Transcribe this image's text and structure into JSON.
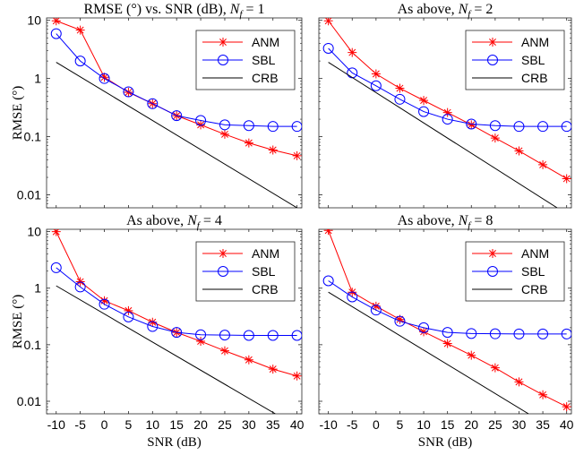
{
  "chart_data": [
    {
      "type": "line",
      "title": "RMSE (°) vs. SNR (dB), ",
      "title_math": "N",
      "title_sub": "f",
      "title_tail": " = 1",
      "xlabel": "",
      "ylabel": "RMSE (°)",
      "x": [
        -10,
        -5,
        0,
        5,
        10,
        15,
        20,
        25,
        30,
        35,
        40
      ],
      "xlim": [
        -12,
        41
      ],
      "ylim": [
        0.006,
        11
      ],
      "yscale": "log",
      "grid": false,
      "legend_position": "top-right",
      "series": [
        {
          "name": "ANM",
          "color": "#ff0000",
          "marker": "star",
          "values": [
            9.8,
            6.8,
            1.05,
            0.58,
            0.37,
            0.23,
            0.16,
            0.11,
            0.078,
            0.059,
            0.047
          ]
        },
        {
          "name": "SBL",
          "color": "#0000ff",
          "marker": "circle",
          "values": [
            5.9,
            2.0,
            1.0,
            0.59,
            0.37,
            0.23,
            0.19,
            0.16,
            0.155,
            0.15,
            0.15
          ]
        },
        {
          "name": "CRB",
          "color": "#000000",
          "marker": "none",
          "x": [
            -10,
            40
          ],
          "values": [
            1.9,
            0.006
          ]
        }
      ]
    },
    {
      "type": "line",
      "title": "As above, ",
      "title_math": "N",
      "title_sub": "f",
      "title_tail": " = 2",
      "xlabel": "",
      "ylabel": "",
      "x": [
        -10,
        -5,
        0,
        5,
        10,
        15,
        20,
        25,
        30,
        35,
        40
      ],
      "xlim": [
        -12,
        41
      ],
      "ylim": [
        0.006,
        11
      ],
      "yscale": "log",
      "grid": false,
      "legend_position": "top-right",
      "series": [
        {
          "name": "ANM",
          "color": "#ff0000",
          "marker": "star",
          "values": [
            9.8,
            2.8,
            1.2,
            0.68,
            0.42,
            0.26,
            0.16,
            0.095,
            0.057,
            0.033,
            0.019
          ]
        },
        {
          "name": "SBL",
          "color": "#0000ff",
          "marker": "circle",
          "values": [
            3.3,
            1.25,
            0.75,
            0.44,
            0.27,
            0.2,
            0.165,
            0.155,
            0.15,
            0.15,
            0.15
          ]
        },
        {
          "name": "CRB",
          "color": "#000000",
          "marker": "none",
          "x": [
            -10,
            38
          ],
          "values": [
            1.9,
            0.006
          ]
        }
      ]
    },
    {
      "type": "line",
      "title": "As above, ",
      "title_math": "N",
      "title_sub": "f",
      "title_tail": " = 4",
      "xlabel": "SNR (dB)",
      "ylabel": "RMSE (°)",
      "x": [
        -10,
        -5,
        0,
        5,
        10,
        15,
        20,
        25,
        30,
        35,
        40
      ],
      "xlim": [
        -12,
        41
      ],
      "ylim": [
        0.006,
        11
      ],
      "yscale": "log",
      "grid": false,
      "legend_position": "top-right",
      "series": [
        {
          "name": "ANM",
          "color": "#ff0000",
          "marker": "star",
          "values": [
            10,
            1.3,
            0.6,
            0.4,
            0.25,
            0.165,
            0.115,
            0.078,
            0.054,
            0.037,
            0.028
          ]
        },
        {
          "name": "SBL",
          "color": "#0000ff",
          "marker": "circle",
          "values": [
            2.3,
            1.05,
            0.52,
            0.31,
            0.21,
            0.165,
            0.15,
            0.148,
            0.146,
            0.146,
            0.146
          ]
        },
        {
          "name": "CRB",
          "color": "#000000",
          "marker": "none",
          "x": [
            -10,
            35.5
          ],
          "values": [
            1.1,
            0.006
          ]
        }
      ]
    },
    {
      "type": "line",
      "title": "As above, ",
      "title_math": "N",
      "title_sub": "f",
      "title_tail": " = 8",
      "xlabel": "SNR (dB)",
      "ylabel": "",
      "x": [
        -10,
        -5,
        0,
        5,
        10,
        15,
        20,
        25,
        30,
        35,
        40
      ],
      "xlim": [
        -12,
        41
      ],
      "ylim": [
        0.006,
        11
      ],
      "yscale": "log",
      "grid": false,
      "legend_position": "top-right",
      "series": [
        {
          "name": "ANM",
          "color": "#ff0000",
          "marker": "star",
          "values": [
            10.5,
            0.85,
            0.48,
            0.28,
            0.17,
            0.105,
            0.065,
            0.039,
            0.022,
            0.013,
            0.008
          ]
        },
        {
          "name": "SBL",
          "color": "#0000ff",
          "marker": "circle",
          "values": [
            1.35,
            0.7,
            0.41,
            0.26,
            0.2,
            0.165,
            0.158,
            0.156,
            0.155,
            0.155,
            0.155
          ]
        },
        {
          "name": "CRB",
          "color": "#000000",
          "marker": "none",
          "x": [
            -10,
            32
          ],
          "values": [
            0.85,
            0.006
          ]
        }
      ]
    }
  ],
  "axes": {
    "x_ticks": [
      "-10",
      "-5",
      "0",
      "5",
      "10",
      "15",
      "20",
      "25",
      "30",
      "35",
      "40"
    ],
    "y_ticks": [
      "10",
      "1",
      "0.1",
      "0.01"
    ]
  }
}
